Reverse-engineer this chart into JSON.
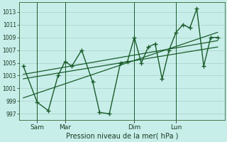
{
  "background_color": "#c8eeea",
  "grid_color": "#b0d4cc",
  "line_color": "#1a5c2a",
  "marker_color": "#1a5c2a",
  "ylabel_ticks": [
    997,
    999,
    1001,
    1003,
    1005,
    1007,
    1009,
    1011,
    1013
  ],
  "ylim": [
    996.0,
    1014.5
  ],
  "xlabel": "Pression niveau de la mer( hPa )",
  "xtick_labels": [
    "Sam",
    "Mar",
    "Dim",
    "Lun"
  ],
  "xtick_positions": [
    1,
    3,
    8,
    11
  ],
  "vline_positions": [
    1,
    3,
    8,
    11
  ],
  "series1_x": [
    0,
    1,
    1.8,
    2.5,
    3,
    3.5,
    4.2,
    5.0,
    5.5,
    6.2,
    7,
    7.5,
    8.0,
    8.5,
    9.0,
    9.5,
    10.0,
    10.5,
    11.0,
    11.5,
    12.0,
    12.5,
    13.0,
    13.5,
    14.0
  ],
  "series1_y": [
    1004.5,
    998.8,
    997.5,
    1003.0,
    1005.2,
    1004.5,
    1007.0,
    1002.0,
    997.2,
    997.0,
    1005.0,
    1005.2,
    1009.0,
    1005.0,
    1007.5,
    1008.0,
    1002.5,
    1007.0,
    1009.8,
    1011.0,
    1010.5,
    1013.5,
    1004.5,
    1009.0,
    1009.0
  ],
  "trend1_x": [
    0,
    14.0
  ],
  "trend1_y": [
    1003.2,
    1008.5
  ],
  "trend2_x": [
    0,
    14.0
  ],
  "trend2_y": [
    1002.5,
    1007.5
  ],
  "trend3_x": [
    0,
    14.0
  ],
  "trend3_y": [
    999.5,
    1009.8
  ],
  "xlim": [
    -0.3,
    14.5
  ]
}
